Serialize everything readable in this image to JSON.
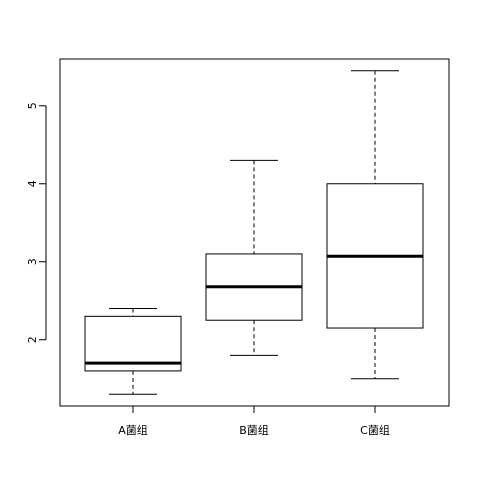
{
  "chart_data": {
    "type": "box",
    "title": "",
    "xlabel": "",
    "ylabel": "",
    "ylim": [
      1.15,
      5.6
    ],
    "y_ticks": [
      2,
      3,
      4,
      5
    ],
    "categories": [
      "A菌组",
      "B菌组",
      "C菌组"
    ],
    "boxes": [
      {
        "category": "A菌组",
        "whisker_low": 1.3,
        "q1": 1.6,
        "median": 1.7,
        "q3": 2.3,
        "whisker_high": 2.4
      },
      {
        "category": "B菌组",
        "whisker_low": 1.8,
        "q1": 2.25,
        "median": 2.68,
        "q3": 3.1,
        "whisker_high": 4.3
      },
      {
        "category": "C菌组",
        "whisker_low": 1.5,
        "q1": 2.15,
        "median": 3.07,
        "q3": 4.0,
        "whisker_high": 5.45
      }
    ],
    "grid": false,
    "legend": "none"
  }
}
